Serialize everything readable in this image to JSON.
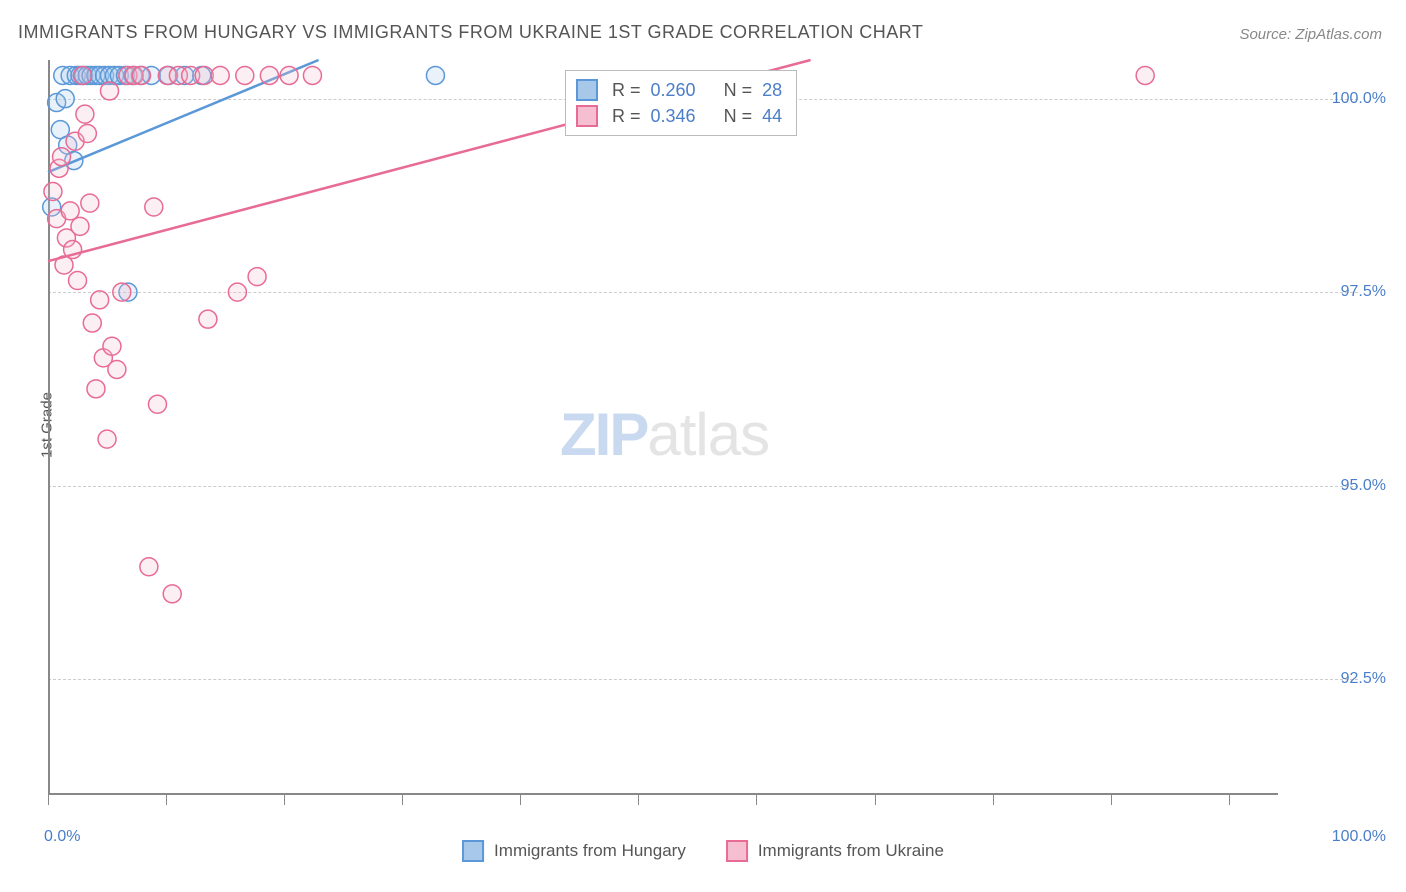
{
  "title": "IMMIGRANTS FROM HUNGARY VS IMMIGRANTS FROM UKRAINE 1ST GRADE CORRELATION CHART",
  "source": "Source: ZipAtlas.com",
  "ylabel": "1st Grade",
  "watermark": {
    "zip": "ZIP",
    "atlas": "atlas"
  },
  "chart": {
    "type": "scatter",
    "background_color": "#ffffff",
    "grid_color": "#cccccc",
    "axis_color": "#888888",
    "tick_label_color": "#4a7ec8",
    "xlim": [
      0,
      100
    ],
    "ylim": [
      91.0,
      100.5
    ],
    "marker_radius": 9,
    "marker_fill_opacity": 0.25,
    "marker_stroke_width": 1.5,
    "line_width": 2.5,
    "yticks": [
      {
        "value": 100.0,
        "label": "100.0%"
      },
      {
        "value": 97.5,
        "label": "97.5%"
      },
      {
        "value": 95.0,
        "label": "95.0%"
      },
      {
        "value": 92.5,
        "label": "92.5%"
      }
    ],
    "xticks_minor": [
      0,
      9.6,
      19.2,
      28.8,
      38.4,
      48.0,
      57.6,
      67.2,
      76.8,
      86.4,
      96.0
    ],
    "xtick_labels": [
      {
        "value": 0,
        "label": "0.0%"
      },
      {
        "value": 100,
        "label": "100.0%"
      }
    ],
    "series": [
      {
        "name": "Immigrants from Hungary",
        "color": "#5a98d8",
        "fill_color": "#a8c8ea",
        "R": "0.260",
        "N": "28",
        "regression": {
          "x1": 0,
          "y1": 99.05,
          "x2": 22,
          "y2": 100.5
        },
        "points": [
          [
            0.3,
            98.6
          ],
          [
            0.7,
            99.95
          ],
          [
            1.0,
            99.6
          ],
          [
            1.2,
            100.3
          ],
          [
            1.4,
            100.0
          ],
          [
            1.6,
            99.4
          ],
          [
            1.8,
            100.3
          ],
          [
            2.1,
            99.2
          ],
          [
            2.3,
            100.3
          ],
          [
            2.6,
            100.3
          ],
          [
            2.9,
            100.3
          ],
          [
            3.2,
            100.3
          ],
          [
            3.5,
            100.3
          ],
          [
            3.9,
            100.3
          ],
          [
            4.2,
            100.3
          ],
          [
            4.6,
            100.3
          ],
          [
            5.0,
            100.3
          ],
          [
            5.4,
            100.3
          ],
          [
            5.8,
            100.3
          ],
          [
            6.3,
            100.3
          ],
          [
            6.9,
            100.3
          ],
          [
            7.5,
            100.3
          ],
          [
            8.4,
            100.3
          ],
          [
            9.8,
            100.3
          ],
          [
            11.1,
            100.3
          ],
          [
            12.5,
            100.3
          ],
          [
            6.5,
            97.5
          ],
          [
            31.5,
            100.3
          ]
        ]
      },
      {
        "name": "Immigrants from Ukraine",
        "color": "#e86b94",
        "fill_color": "#f5bed1",
        "R": "0.346",
        "N": "44",
        "regression": {
          "x1": 0,
          "y1": 97.9,
          "x2": 62,
          "y2": 100.5
        },
        "points": [
          [
            0.4,
            98.8
          ],
          [
            0.7,
            98.45
          ],
          [
            0.9,
            99.1
          ],
          [
            1.1,
            99.25
          ],
          [
            1.3,
            97.85
          ],
          [
            1.5,
            98.2
          ],
          [
            1.8,
            98.55
          ],
          [
            2.0,
            98.05
          ],
          [
            2.2,
            99.45
          ],
          [
            2.4,
            97.65
          ],
          [
            2.6,
            98.35
          ],
          [
            2.8,
            100.3
          ],
          [
            3.0,
            99.8
          ],
          [
            3.2,
            99.55
          ],
          [
            3.4,
            98.65
          ],
          [
            3.6,
            97.1
          ],
          [
            3.9,
            96.25
          ],
          [
            4.2,
            97.4
          ],
          [
            4.5,
            96.65
          ],
          [
            4.8,
            95.6
          ],
          [
            5.2,
            96.8
          ],
          [
            5.6,
            96.5
          ],
          [
            6.0,
            97.5
          ],
          [
            6.5,
            100.3
          ],
          [
            7.0,
            100.3
          ],
          [
            7.6,
            100.3
          ],
          [
            8.2,
            93.95
          ],
          [
            8.9,
            96.05
          ],
          [
            9.7,
            100.3
          ],
          [
            10.6,
            100.3
          ],
          [
            11.6,
            100.3
          ],
          [
            12.7,
            100.3
          ],
          [
            14.0,
            100.3
          ],
          [
            15.4,
            97.5
          ],
          [
            10.1,
            93.6
          ],
          [
            8.6,
            98.6
          ],
          [
            13.0,
            97.15
          ],
          [
            16.0,
            100.3
          ],
          [
            17.0,
            97.7
          ],
          [
            18.0,
            100.3
          ],
          [
            19.6,
            100.3
          ],
          [
            21.5,
            100.3
          ],
          [
            89.2,
            100.3
          ],
          [
            5.0,
            100.1
          ]
        ]
      }
    ]
  },
  "legend_bottom": [
    {
      "label": "Immigrants from Hungary",
      "stroke": "#5a98d8",
      "fill": "#a8c8ea"
    },
    {
      "label": "Immigrants from Ukraine",
      "stroke": "#e86b94",
      "fill": "#f5bed1"
    }
  ]
}
